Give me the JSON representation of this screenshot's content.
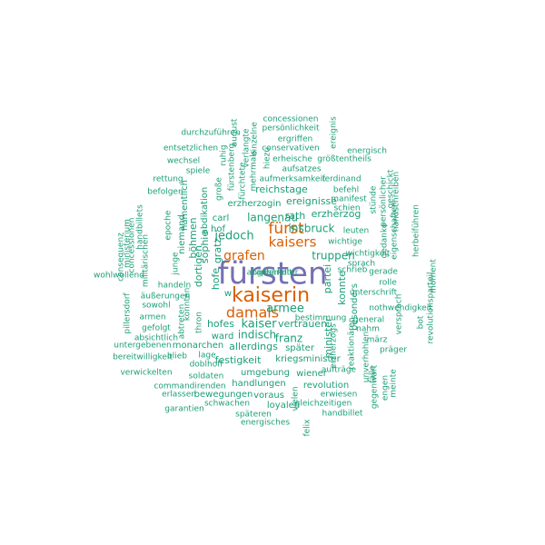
{
  "colors": {
    "top": "#7570b3",
    "second": "#d95f02",
    "rest": "#1b9e77"
  },
  "words": [
    {
      "text": "fürsten",
      "tier": "top"
    },
    {
      "text": "kaiserin",
      "tier": "second"
    },
    {
      "text": "damals",
      "tier": "second"
    },
    {
      "text": "kaisers",
      "tier": "second"
    },
    {
      "text": "fürst",
      "tier": "second"
    },
    {
      "text": "grafen",
      "tier": "second"
    },
    {
      "text": "kaiser",
      "tier": "rest"
    },
    {
      "text": "armee",
      "tier": "rest"
    },
    {
      "text": "jedoch",
      "tier": "rest"
    },
    {
      "text": "insbruck",
      "tier": "rest"
    },
    {
      "text": "langenau",
      "tier": "rest"
    },
    {
      "text": "franz",
      "tier": "rest"
    },
    {
      "text": "truppen",
      "tier": "rest"
    },
    {
      "text": "ereignisse",
      "tier": "rest"
    },
    {
      "text": "erzherzog",
      "tier": "rest"
    },
    {
      "text": "indisch",
      "tier": "rest"
    },
    {
      "text": "reichstage",
      "tier": "rest"
    },
    {
      "text": "rath",
      "tier": "rest"
    },
    {
      "text": "hofes",
      "tier": "rest"
    },
    {
      "text": "allerdings",
      "tier": "rest"
    },
    {
      "text": "festigkeit",
      "tier": "rest"
    },
    {
      "text": "vertrauen",
      "tier": "rest"
    },
    {
      "text": "später",
      "tier": "rest"
    },
    {
      "text": "erzherzogin",
      "tier": "rest"
    },
    {
      "text": "carl",
      "tier": "rest"
    },
    {
      "text": "hof",
      "tier": "rest"
    },
    {
      "text": "gratz",
      "tier": "rest"
    },
    {
      "text": "hofe",
      "tier": "rest"
    },
    {
      "text": "dortigen",
      "tier": "rest"
    },
    {
      "text": "sophie",
      "tier": "rest"
    },
    {
      "text": "minister",
      "tier": "rest"
    },
    {
      "text": "partei",
      "tier": "rest"
    },
    {
      "text": "konnte",
      "tier": "rest"
    },
    {
      "text": "besonders",
      "tier": "rest"
    },
    {
      "text": "w",
      "tier": "rest"
    },
    {
      "text": "ward",
      "tier": "rest"
    },
    {
      "text": "monarchen",
      "tier": "rest"
    },
    {
      "text": "umgebung",
      "tier": "rest"
    },
    {
      "text": "kriegsminister",
      "tier": "rest"
    },
    {
      "text": "handlungen",
      "tier": "rest"
    },
    {
      "text": "wiener",
      "tier": "rest"
    },
    {
      "text": "revolution",
      "tier": "rest"
    },
    {
      "text": "bewegungen",
      "tier": "rest"
    },
    {
      "text": "voraus",
      "tier": "rest"
    },
    {
      "text": "loyalen",
      "tier": "rest"
    },
    {
      "text": "erwiesen",
      "tier": "rest"
    },
    {
      "text": "gleichzeitigen",
      "tier": "rest"
    },
    {
      "text": "handbillet",
      "tier": "rest"
    },
    {
      "text": "schwachen",
      "tier": "rest"
    },
    {
      "text": "späteren",
      "tier": "rest"
    },
    {
      "text": "energisches",
      "tier": "rest"
    },
    {
      "text": "garantien",
      "tier": "rest"
    },
    {
      "text": "erlassen",
      "tier": "rest"
    },
    {
      "text": "commandirenden",
      "tier": "rest"
    },
    {
      "text": "verwickelten",
      "tier": "rest"
    },
    {
      "text": "soldaten",
      "tier": "rest"
    },
    {
      "text": "doblhoff",
      "tier": "rest"
    },
    {
      "text": "bereitwilligkeit",
      "tier": "rest"
    },
    {
      "text": "untergebenen",
      "tier": "rest"
    },
    {
      "text": "blieb",
      "tier": "rest"
    },
    {
      "text": "lage",
      "tier": "rest"
    },
    {
      "text": "absichtlich",
      "tier": "rest"
    },
    {
      "text": "gefolgt",
      "tier": "rest"
    },
    {
      "text": "armen",
      "tier": "rest"
    },
    {
      "text": "sowohl",
      "tier": "rest"
    },
    {
      "text": "äußerungen",
      "tier": "rest"
    },
    {
      "text": "handeln",
      "tier": "rest"
    },
    {
      "text": "böhmen",
      "tier": "rest"
    },
    {
      "text": "abdikation",
      "tier": "rest"
    },
    {
      "text": "niemand",
      "tier": "rest"
    },
    {
      "text": "namentlich",
      "tier": "rest"
    },
    {
      "text": "befolgen",
      "tier": "rest"
    },
    {
      "text": "rettung",
      "tier": "rest"
    },
    {
      "text": "spiele",
      "tier": "rest"
    },
    {
      "text": "wechsel",
      "tier": "rest"
    },
    {
      "text": "entsetzlichen",
      "tier": "rest"
    },
    {
      "text": "durchzuführen",
      "tier": "rest"
    },
    {
      "text": "august",
      "tier": "rest"
    },
    {
      "text": "verlangte",
      "tier": "rest"
    },
    {
      "text": "einzelne",
      "tier": "rest"
    },
    {
      "text": "concessionen",
      "tier": "rest"
    },
    {
      "text": "persönlichkeit",
      "tier": "rest"
    },
    {
      "text": "ergriffen",
      "tier": "rest"
    },
    {
      "text": "conservativen",
      "tier": "rest"
    },
    {
      "text": "ereignis",
      "tier": "rest"
    },
    {
      "text": "energisch",
      "tier": "rest"
    },
    {
      "text": "erheische",
      "tier": "rest"
    },
    {
      "text": "größtentheils",
      "tier": "rest"
    },
    {
      "text": "aufsatzes",
      "tier": "rest"
    },
    {
      "text": "aufmerksamkeit",
      "tier": "rest"
    },
    {
      "text": "ferdinand",
      "tier": "rest"
    },
    {
      "text": "befehl",
      "tier": "rest"
    },
    {
      "text": "manifest",
      "tier": "rest"
    },
    {
      "text": "schien",
      "tier": "rest"
    },
    {
      "text": "leuten",
      "tier": "rest"
    },
    {
      "text": "wichtige",
      "tier": "rest"
    },
    {
      "text": "wichtigkeit",
      "tier": "rest"
    },
    {
      "text": "sprach",
      "tier": "rest"
    },
    {
      "text": "schrieb",
      "tier": "rest"
    },
    {
      "text": "gerade",
      "tier": "rest"
    },
    {
      "text": "rolle",
      "tier": "rest"
    },
    {
      "text": "unterschrift",
      "tier": "rest"
    },
    {
      "text": "nothwendigkeit",
      "tier": "rest"
    },
    {
      "text": "general",
      "tier": "rest"
    },
    {
      "text": "nahm",
      "tier": "rest"
    },
    {
      "text": "märz",
      "tier": "rest"
    },
    {
      "text": "präger",
      "tier": "rest"
    },
    {
      "text": "bestimmung",
      "tier": "rest"
    },
    {
      "text": "aufträge",
      "tier": "rest"
    },
    {
      "text": "bot",
      "tier": "rest"
    },
    {
      "text": "ruhig",
      "tier": "rest"
    },
    {
      "text": "fürstenberg",
      "tier": "rest"
    },
    {
      "text": "fürchtete",
      "tier": "rest"
    },
    {
      "text": "mehrmals",
      "tier": "rest"
    },
    {
      "text": "hiezu",
      "tier": "rest"
    },
    {
      "text": "große",
      "tier": "rest"
    },
    {
      "text": "abtreten",
      "tier": "rest"
    },
    {
      "text": "konnten",
      "tier": "rest"
    },
    {
      "text": "thron",
      "tier": "rest"
    },
    {
      "text": "epoche",
      "tier": "rest"
    },
    {
      "text": "junge",
      "tier": "rest"
    },
    {
      "text": "militärischen",
      "tier": "rest"
    },
    {
      "text": "concessionen",
      "tier": "rest"
    },
    {
      "text": "handbillets",
      "tier": "rest"
    },
    {
      "text": "ministerium",
      "tier": "rest"
    },
    {
      "text": "consequenz",
      "tier": "rest"
    },
    {
      "text": "wohlwollend",
      "tier": "rest"
    },
    {
      "text": "pillersdorf",
      "tier": "rest"
    },
    {
      "text": "stünde",
      "tier": "rest"
    },
    {
      "text": "persönlicher",
      "tier": "rest"
    },
    {
      "text": "handschreiben",
      "tier": "rest"
    },
    {
      "text": "geschickt",
      "tier": "rest"
    },
    {
      "text": "eigenschaften",
      "tier": "rest"
    },
    {
      "text": "gedanke",
      "tier": "rest"
    },
    {
      "text": "herbeiführen",
      "tier": "rest"
    },
    {
      "text": "moment",
      "tier": "rest"
    },
    {
      "text": "revolutionsparteil",
      "tier": "rest"
    },
    {
      "text": "versprach",
      "tier": "rest"
    },
    {
      "text": "unverhohlen",
      "tier": "rest"
    },
    {
      "text": "fälle",
      "tier": "rest"
    },
    {
      "text": "gegenwart",
      "tier": "rest"
    },
    {
      "text": "engen",
      "tier": "rest"
    },
    {
      "text": "meinte",
      "tier": "rest"
    },
    {
      "text": "reaktionären",
      "tier": "rest"
    },
    {
      "text": "erzherzogs",
      "tier": "rest"
    },
    {
      "text": "vielen",
      "tier": "rest"
    },
    {
      "text": "felix",
      "tier": "rest"
    },
    {
      "text": "tapferkeit",
      "tier": "rest"
    },
    {
      "text": "abgesandter",
      "tier": "rest"
    }
  ]
}
